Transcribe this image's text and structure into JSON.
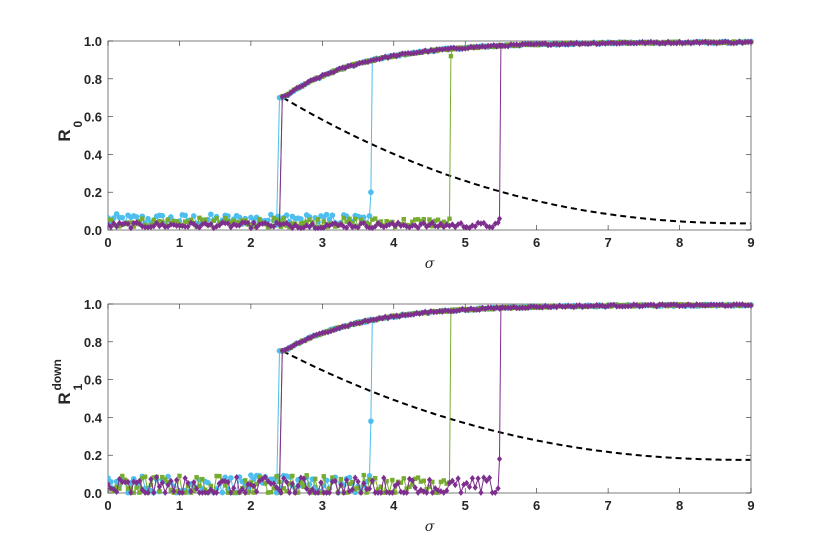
{
  "colors": {
    "axis": "#262626",
    "cyan": "#4DBEEE",
    "green": "#77AC30",
    "purple": "#7E2F8E",
    "theory": "#000000"
  },
  "chart_data": [
    {
      "type": "line",
      "xlabel": "σ",
      "ylabel_main": "R",
      "ylabel_sub": "0",
      "ylabel_sup": "",
      "xlim": [
        0,
        9
      ],
      "ylim": [
        0,
        1
      ],
      "xticks": [
        "0",
        "1",
        "2",
        "3",
        "4",
        "5",
        "6",
        "7",
        "8",
        "9"
      ],
      "yticks": [
        "0.0",
        "0.2",
        "0.4",
        "0.6",
        "0.8",
        "1.0"
      ],
      "series": [
        {
          "color_key": "cyan",
          "marker": "circle",
          "jump_up": 2.38,
          "jump_down": 3.68,
          "low_level": 0.055,
          "low_noise": 0.03,
          "jump_peak": 0.2
        },
        {
          "color_key": "green",
          "marker": "square",
          "jump_up": 2.42,
          "jump_down": 4.8,
          "low_level": 0.04,
          "low_noise": 0.025,
          "jump_peak": 0.92
        },
        {
          "color_key": "purple",
          "marker": "diamond",
          "jump_up": 2.42,
          "jump_down": 5.48,
          "low_level": 0.025,
          "low_noise": 0.015,
          "jump_peak": 0.06
        }
      ],
      "theory_upper_floor": 0.7,
      "theory_lower_end": 0.035
    },
    {
      "type": "line",
      "xlabel": "σ",
      "ylabel_main": "R",
      "ylabel_sub": "1",
      "ylabel_sup": "down",
      "xlim": [
        0,
        9
      ],
      "ylim": [
        0,
        1
      ],
      "xticks": [
        "0",
        "1",
        "2",
        "3",
        "4",
        "5",
        "6",
        "7",
        "8",
        "9"
      ],
      "yticks": [
        "0.0",
        "0.2",
        "0.4",
        "0.6",
        "0.8",
        "1.0"
      ],
      "series": [
        {
          "color_key": "cyan",
          "marker": "circle",
          "jump_up": 2.38,
          "jump_down": 3.68,
          "low_level": 0.045,
          "low_noise": 0.05,
          "jump_peak": 0.38
        },
        {
          "color_key": "green",
          "marker": "square",
          "jump_up": 2.42,
          "jump_down": 4.8,
          "low_level": 0.035,
          "low_noise": 0.06,
          "jump_peak": 0.96
        },
        {
          "color_key": "purple",
          "marker": "diamond",
          "jump_up": 2.42,
          "jump_down": 5.48,
          "low_level": 0.025,
          "low_noise": 0.06,
          "jump_peak": 0.18
        }
      ],
      "theory_upper_floor": 0.75,
      "theory_lower_end": 0.175
    }
  ]
}
